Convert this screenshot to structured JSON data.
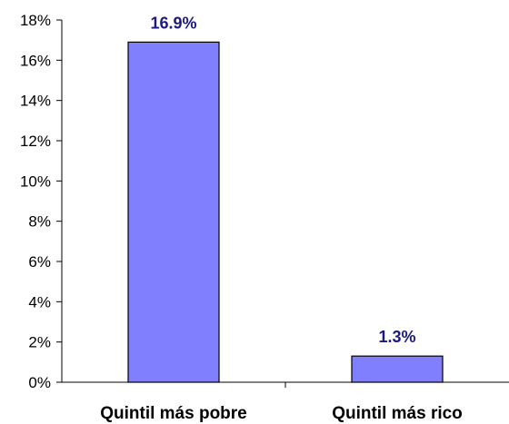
{
  "chart_data": {
    "type": "bar",
    "categories": [
      "Quintil más pobre",
      "Quintil más rico"
    ],
    "values": [
      16.9,
      1.3
    ],
    "data_labels": [
      "16.9%",
      "1.3%"
    ],
    "y_ticks": [
      "0%",
      "2%",
      "4%",
      "6%",
      "8%",
      "10%",
      "12%",
      "14%",
      "16%",
      "18%"
    ],
    "ylim": [
      0,
      18
    ],
    "title": "",
    "xlabel": "",
    "ylabel": "",
    "grid": false,
    "bar_color": "#8080ff"
  }
}
